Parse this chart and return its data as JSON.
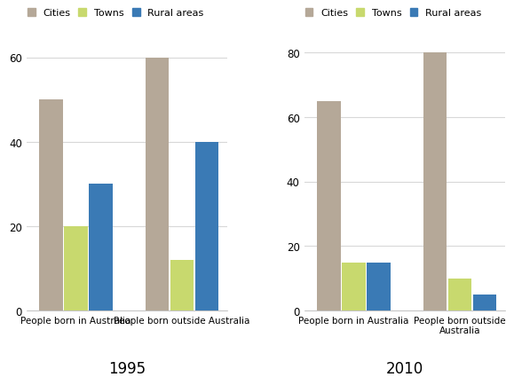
{
  "chart1": {
    "title": "1995",
    "ylim": [
      0,
      65
    ],
    "yticks": [
      0,
      20,
      40,
      60
    ],
    "groups": [
      "People born in Australia",
      "People born outside Australia"
    ],
    "series": {
      "Cities": [
        50,
        60
      ],
      "Towns": [
        20,
        12
      ],
      "Rural areas": [
        30,
        40
      ]
    }
  },
  "chart2": {
    "title": "2010",
    "ylim": [
      0,
      85
    ],
    "yticks": [
      0,
      20,
      40,
      60,
      80
    ],
    "groups": [
      "People born in Australia",
      "People born outside Australia"
    ],
    "series": {
      "Cities": [
        65,
        80
      ],
      "Towns": [
        15,
        10
      ],
      "Rural areas": [
        15,
        5
      ]
    }
  },
  "colors": {
    "Cities": "#b5a898",
    "Towns": "#c8d96e",
    "Rural areas": "#3a7ab5"
  },
  "legend_labels": [
    "Cities",
    "Towns",
    "Rural areas"
  ],
  "bar_width": 0.18,
  "background_color": "#ffffff",
  "grid_color": "#d8d8d8",
  "title_fontsize": 12,
  "label_fontsize": 7.5,
  "legend_fontsize": 8,
  "tick_fontsize": 8.5
}
